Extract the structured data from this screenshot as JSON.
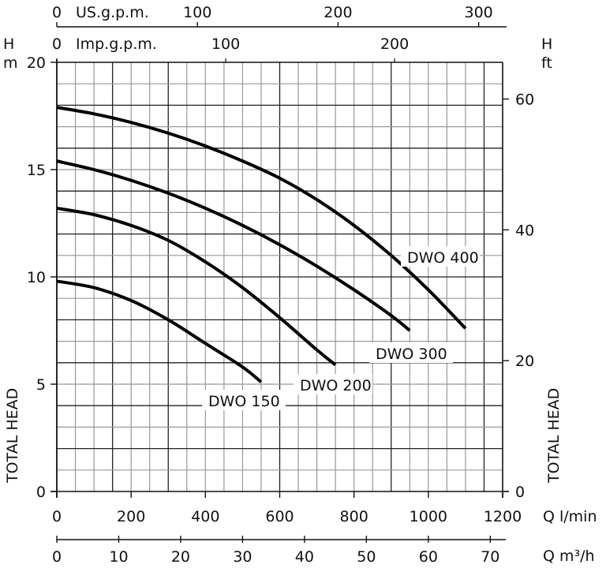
{
  "chart_data": {
    "type": "line",
    "title": "",
    "xlabel": "Q l/min",
    "ylabel": "H m",
    "y2label": "H ft",
    "side_label": "TOTAL HEAD",
    "xlim": [
      0,
      1200
    ],
    "ylim": [
      0,
      20
    ],
    "grid": true,
    "x_ticks": [
      0,
      200,
      400,
      600,
      800,
      1000,
      1200
    ],
    "y_ticks": [
      0,
      5,
      10,
      15,
      20
    ],
    "secondary_axes": {
      "us_gpm": {
        "label": "US.g.p.m.",
        "ticks": [
          0,
          100,
          200,
          300
        ]
      },
      "imp_gpm": {
        "label": "Imp.g.p.m.",
        "ticks": [
          0,
          100,
          200
        ]
      },
      "head_ft": {
        "label": "H ft",
        "ticks": [
          0,
          20,
          40,
          60
        ]
      },
      "m3h": {
        "label": "Q m³/h",
        "ticks": [
          0,
          10,
          20,
          30,
          40,
          50,
          60,
          70
        ]
      }
    },
    "series": [
      {
        "name": "DWO 400",
        "x": [
          0,
          100,
          200,
          300,
          400,
          500,
          600,
          700,
          800,
          900,
          1000,
          1100
        ],
        "values": [
          17.9,
          17.6,
          17.2,
          16.7,
          16.1,
          15.4,
          14.6,
          13.6,
          12.4,
          11.0,
          9.4,
          7.6
        ]
      },
      {
        "name": "DWO 300",
        "x": [
          0,
          100,
          200,
          300,
          400,
          500,
          600,
          700,
          800,
          900,
          950
        ],
        "values": [
          15.4,
          15.0,
          14.5,
          13.9,
          13.2,
          12.4,
          11.5,
          10.5,
          9.4,
          8.2,
          7.5
        ]
      },
      {
        "name": "DWO 200",
        "x": [
          0,
          100,
          200,
          300,
          400,
          500,
          600,
          700,
          750
        ],
        "values": [
          13.2,
          12.9,
          12.4,
          11.7,
          10.7,
          9.5,
          8.1,
          6.6,
          5.9
        ]
      },
      {
        "name": "DWO 150",
        "x": [
          0,
          100,
          200,
          300,
          400,
          500,
          550
        ],
        "values": [
          9.8,
          9.5,
          8.9,
          8.0,
          6.9,
          5.8,
          5.1
        ]
      }
    ]
  },
  "labels": {
    "us_gpm": "US.g.p.m.",
    "imp_gpm": "Imp.g.p.m.",
    "h_left_1": "H",
    "h_left_2": "m",
    "h_right_1": "H",
    "h_right_2": "ft",
    "total_head": "TOTAL HEAD",
    "q_lmin": "Q  l/min",
    "q_m3h": "Q  m³/h",
    "s400": "DWO  400",
    "s300": "DWO  300",
    "s200": "DWO  200",
    "s150": "DWO  150"
  }
}
